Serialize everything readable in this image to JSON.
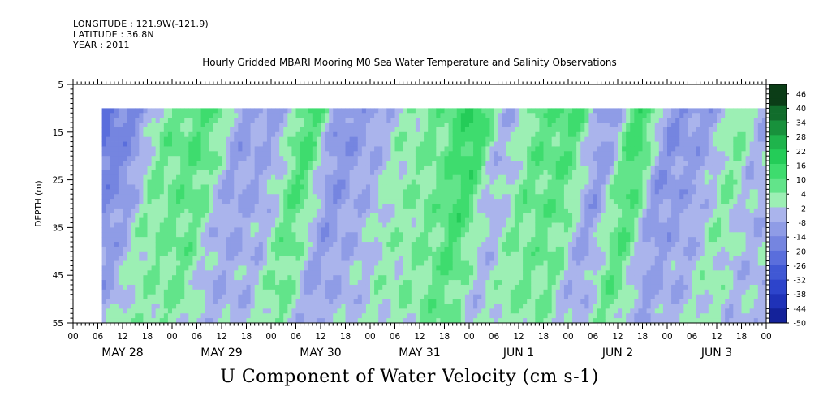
{
  "header": {
    "longitude": "LONGITUDE : 121.9W(-121.9)",
    "latitude": "LATITUDE : 36.8N",
    "year": "YEAR : 2011"
  },
  "chart_data": {
    "type": "heatmap",
    "title": "Hourly Gridded MBARI Mooring M0 Sea Water Temperature and Salinity Observations",
    "ylabel": "DEPTH (m)",
    "footer_label": "U Component of Water Velocity (cm s-1)",
    "y_ticks": [
      5,
      15,
      25,
      35,
      45,
      55
    ],
    "ylim": [
      55,
      5
    ],
    "data_depth_range": [
      10,
      55
    ],
    "x_hour_ticks": [
      "00",
      "06",
      "12",
      "18",
      "00",
      "06",
      "12",
      "18",
      "00",
      "06",
      "12",
      "18",
      "00",
      "06",
      "12",
      "18",
      "00",
      "06",
      "12",
      "18",
      "00",
      "06",
      "12",
      "18",
      "00",
      "06",
      "12",
      "18",
      "00"
    ],
    "x_days": [
      "MAY 28",
      "MAY 29",
      "MAY 30",
      "MAY 31",
      "JUN  1",
      "JUN  2",
      "JUN  3"
    ],
    "x_range_hours": [
      0,
      168
    ],
    "data_start_hour": 7,
    "data_end_hour": 168,
    "colorbar": {
      "labels": [
        "46",
        "40",
        "34",
        "28",
        "22",
        "16",
        "10",
        "4",
        "-2",
        "-8",
        "-14",
        "-20",
        "-26",
        "-32",
        "-38",
        "-44",
        "-50"
      ],
      "min": -50,
      "max": 50,
      "step": 3,
      "positive_colors": [
        "#0b3d17",
        "#116d2c",
        "#18913c",
        "#1fb44c",
        "#24cc58",
        "#3edc6e",
        "#62e48a",
        "#9cefb4"
      ],
      "negative_colors": [
        "#aab4ec",
        "#8f9ce6",
        "#7585e0",
        "#5a6edc",
        "#4058d4",
        "#2d44cb",
        "#1f32b8",
        "#14229a",
        "#0b1478"
      ]
    },
    "field_description_samples": {
      "columns_hour": [
        7,
        14,
        24,
        33,
        42,
        50,
        58,
        66,
        74,
        82,
        90,
        98,
        106,
        114,
        122,
        130,
        138,
        146,
        154,
        162,
        168
      ],
      "surface_u": [
        -22,
        -14,
        8,
        12,
        -8,
        -6,
        14,
        -12,
        -6,
        4,
        8,
        18,
        -4,
        10,
        12,
        -10,
        16,
        -12,
        -8,
        6,
        -4
      ]
    }
  }
}
